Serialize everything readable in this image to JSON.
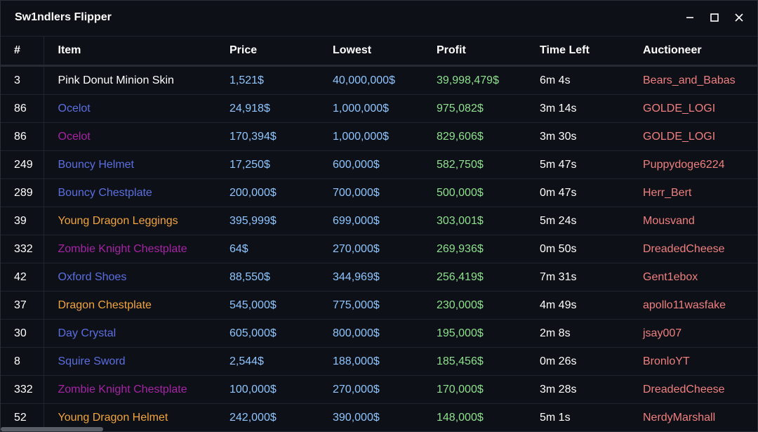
{
  "window": {
    "title": "Sw1ndlers Flipper"
  },
  "colors": {
    "white": "#ffffff",
    "blue_rarity": "#5c6ee0",
    "purple_rarity": "#a623a6",
    "gold_rarity": "#f2a43a",
    "price": "#8ec5ff",
    "profit": "#8ee08e",
    "auctioneer": "#f07f7f"
  },
  "table": {
    "headers": {
      "num": "#",
      "item": "Item",
      "price": "Price",
      "lowest": "Lowest",
      "profit": "Profit",
      "time_left": "Time Left",
      "auctioneer": "Auctioneer"
    },
    "rows": [
      {
        "num": "3",
        "item": "Pink Donut Minion Skin",
        "item_color": "#ffffff",
        "price": "1,521$",
        "lowest": "40,000,000$",
        "profit": "39,998,479$",
        "time_left": "6m 4s",
        "auctioneer": "Bears_and_Babas"
      },
      {
        "num": "86",
        "item": "Ocelot",
        "item_color": "#5c6ee0",
        "price": "24,918$",
        "lowest": "1,000,000$",
        "profit": "975,082$",
        "time_left": "3m 14s",
        "auctioneer": "GOLDE_LOGI"
      },
      {
        "num": "86",
        "item": "Ocelot",
        "item_color": "#a623a6",
        "price": "170,394$",
        "lowest": "1,000,000$",
        "profit": "829,606$",
        "time_left": "3m 30s",
        "auctioneer": "GOLDE_LOGI"
      },
      {
        "num": "249",
        "item": "Bouncy Helmet",
        "item_color": "#5c6ee0",
        "price": "17,250$",
        "lowest": "600,000$",
        "profit": "582,750$",
        "time_left": "5m 47s",
        "auctioneer": "Puppydoge6224"
      },
      {
        "num": "289",
        "item": "Bouncy Chestplate",
        "item_color": "#5c6ee0",
        "price": "200,000$",
        "lowest": "700,000$",
        "profit": "500,000$",
        "time_left": "0m 47s",
        "auctioneer": "Herr_Bert"
      },
      {
        "num": "39",
        "item": "Young Dragon Leggings",
        "item_color": "#f2a43a",
        "price": "395,999$",
        "lowest": "699,000$",
        "profit": "303,001$",
        "time_left": "5m 24s",
        "auctioneer": "Mousvand"
      },
      {
        "num": "332",
        "item": "Zombie Knight Chestplate",
        "item_color": "#a623a6",
        "price": "64$",
        "lowest": "270,000$",
        "profit": "269,936$",
        "time_left": "0m 50s",
        "auctioneer": "DreadedCheese"
      },
      {
        "num": "42",
        "item": "Oxford Shoes",
        "item_color": "#5c6ee0",
        "price": "88,550$",
        "lowest": "344,969$",
        "profit": "256,419$",
        "time_left": "7m 31s",
        "auctioneer": "Gent1ebox"
      },
      {
        "num": "37",
        "item": "Dragon Chestplate",
        "item_color": "#f2a43a",
        "price": "545,000$",
        "lowest": "775,000$",
        "profit": "230,000$",
        "time_left": "4m 49s",
        "auctioneer": "apollo11wasfake"
      },
      {
        "num": "30",
        "item": "Day Crystal",
        "item_color": "#5c6ee0",
        "price": "605,000$",
        "lowest": "800,000$",
        "profit": "195,000$",
        "time_left": "2m 8s",
        "auctioneer": "jsay007"
      },
      {
        "num": "8",
        "item": "Squire Sword",
        "item_color": "#5c6ee0",
        "price": "2,544$",
        "lowest": "188,000$",
        "profit": "185,456$",
        "time_left": "0m 26s",
        "auctioneer": "BronloYT"
      },
      {
        "num": "332",
        "item": "Zombie Knight Chestplate",
        "item_color": "#a623a6",
        "price": "100,000$",
        "lowest": "270,000$",
        "profit": "170,000$",
        "time_left": "3m 28s",
        "auctioneer": "DreadedCheese"
      },
      {
        "num": "52",
        "item": "Young Dragon Helmet",
        "item_color": "#f2a43a",
        "price": "242,000$",
        "lowest": "390,000$",
        "profit": "148,000$",
        "time_left": "5m 1s",
        "auctioneer": "NerdyMarshall"
      }
    ]
  },
  "icons": {
    "minimize": "minimize-icon",
    "maximize": "maximize-icon",
    "close": "close-icon"
  }
}
